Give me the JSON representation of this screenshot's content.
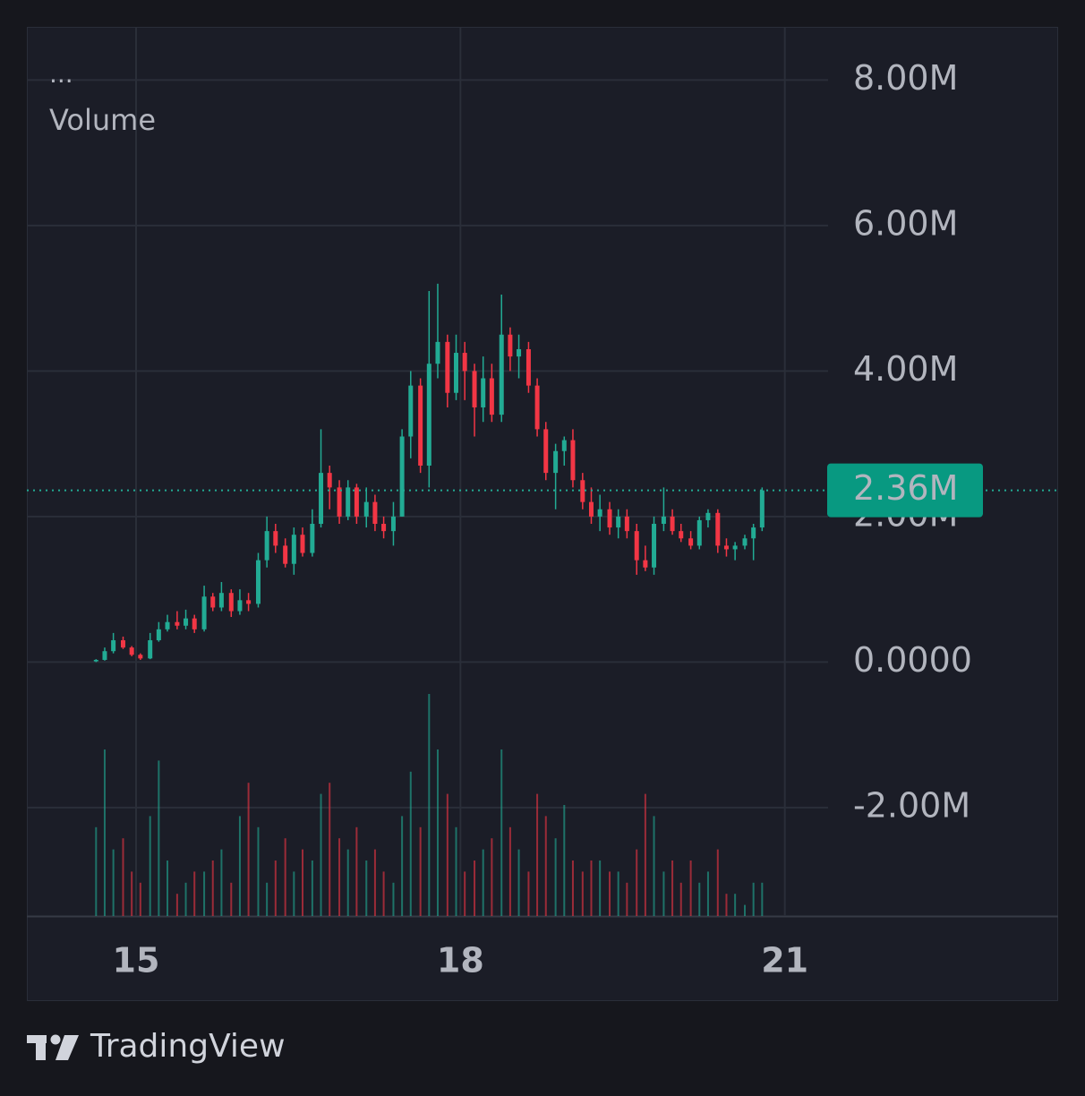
{
  "chart_data": {
    "type": "candlestick",
    "menu": "...",
    "legend_label": "Volume",
    "brand": "TradingView",
    "up_color": "#22ab94",
    "down_color": "#f23645",
    "x": [
      14.63,
      14.71,
      14.79,
      14.88,
      14.96,
      15.04,
      15.13,
      15.21,
      15.29,
      15.38,
      15.46,
      15.54,
      15.63,
      15.71,
      15.79,
      15.88,
      15.96,
      16.04,
      16.13,
      16.21,
      16.29,
      16.38,
      16.46,
      16.54,
      16.63,
      16.71,
      16.79,
      16.88,
      16.96,
      17.04,
      17.13,
      17.21,
      17.29,
      17.38,
      17.46,
      17.54,
      17.63,
      17.71,
      17.79,
      17.88,
      17.96,
      18.04,
      18.13,
      18.21,
      18.29,
      18.38,
      18.46,
      18.54,
      18.63,
      18.71,
      18.79,
      18.88,
      18.96,
      19.04,
      19.13,
      19.21,
      19.29,
      19.38,
      19.46,
      19.54,
      19.63,
      19.71,
      19.79,
      19.88,
      19.96,
      20.04,
      20.13,
      20.21,
      20.29,
      20.38,
      20.46,
      20.54,
      20.63,
      20.71,
      20.79
    ],
    "open": [
      0.01,
      0.03,
      0.15,
      0.3,
      0.2,
      0.1,
      0.05,
      0.3,
      0.45,
      0.55,
      0.5,
      0.6,
      0.45,
      0.9,
      0.75,
      0.95,
      0.7,
      0.85,
      0.8,
      1.4,
      1.8,
      1.6,
      1.35,
      1.75,
      1.5,
      1.9,
      2.6,
      2.4,
      2.0,
      2.4,
      2.0,
      2.2,
      1.9,
      1.8,
      2.0,
      3.1,
      3.8,
      2.7,
      4.1,
      4.4,
      3.7,
      4.25,
      4.0,
      3.5,
      3.9,
      3.4,
      4.5,
      4.2,
      4.3,
      3.8,
      3.2,
      2.6,
      2.9,
      3.05,
      2.5,
      2.2,
      2.0,
      2.1,
      1.85,
      2.0,
      1.8,
      1.4,
      1.3,
      1.9,
      2.0,
      1.8,
      1.7,
      1.6,
      1.95,
      2.05,
      1.6,
      1.55,
      1.6,
      1.7,
      1.85
    ],
    "high": [
      0.04,
      0.2,
      0.4,
      0.35,
      0.22,
      0.12,
      0.4,
      0.55,
      0.65,
      0.7,
      0.72,
      0.65,
      1.05,
      0.95,
      1.1,
      1.0,
      1.0,
      0.95,
      1.5,
      2.0,
      1.9,
      1.7,
      1.85,
      1.85,
      2.1,
      3.2,
      2.7,
      2.5,
      2.5,
      2.45,
      2.4,
      2.3,
      2.0,
      2.2,
      3.2,
      4.0,
      3.9,
      5.1,
      5.2,
      4.5,
      4.5,
      4.4,
      4.1,
      4.2,
      4.1,
      5.05,
      4.6,
      4.5,
      4.4,
      3.9,
      3.3,
      3.0,
      3.1,
      3.2,
      2.6,
      2.4,
      2.3,
      2.2,
      2.1,
      2.1,
      1.9,
      1.6,
      2.0,
      2.4,
      2.1,
      1.9,
      1.8,
      2.0,
      2.1,
      2.1,
      1.7,
      1.65,
      1.75,
      1.9,
      2.4
    ],
    "low": [
      0.0,
      0.02,
      0.12,
      0.18,
      0.08,
      0.03,
      0.04,
      0.28,
      0.42,
      0.45,
      0.45,
      0.4,
      0.42,
      0.7,
      0.7,
      0.62,
      0.65,
      0.7,
      0.75,
      1.3,
      1.5,
      1.3,
      1.2,
      1.45,
      1.45,
      1.85,
      2.1,
      1.9,
      1.95,
      1.9,
      1.85,
      1.8,
      1.7,
      1.6,
      2.0,
      2.8,
      2.6,
      2.4,
      3.9,
      3.5,
      3.6,
      3.6,
      3.1,
      3.3,
      3.3,
      3.3,
      4.0,
      3.9,
      3.7,
      3.1,
      2.5,
      2.1,
      2.7,
      2.4,
      2.1,
      1.9,
      1.8,
      1.75,
      1.7,
      1.7,
      1.2,
      1.25,
      1.2,
      1.8,
      1.75,
      1.65,
      1.55,
      1.55,
      1.85,
      1.5,
      1.45,
      1.4,
      1.55,
      1.4,
      1.8
    ],
    "close": [
      0.03,
      0.15,
      0.3,
      0.2,
      0.1,
      0.05,
      0.3,
      0.45,
      0.55,
      0.5,
      0.6,
      0.45,
      0.9,
      0.75,
      0.95,
      0.7,
      0.85,
      0.8,
      1.4,
      1.8,
      1.6,
      1.35,
      1.75,
      1.5,
      1.9,
      2.6,
      2.4,
      2.0,
      2.4,
      2.0,
      2.2,
      1.9,
      1.8,
      2.0,
      3.1,
      3.8,
      2.7,
      4.1,
      4.4,
      3.7,
      4.25,
      4.0,
      3.5,
      3.9,
      3.4,
      4.5,
      4.2,
      4.3,
      3.8,
      3.2,
      2.6,
      2.9,
      3.05,
      2.5,
      2.2,
      2.0,
      2.1,
      1.85,
      2.0,
      1.8,
      1.4,
      1.3,
      1.9,
      2.0,
      1.8,
      1.7,
      1.6,
      1.95,
      2.05,
      1.6,
      1.55,
      1.6,
      1.7,
      1.85,
      2.36
    ],
    "volume": [
      40,
      75,
      30,
      35,
      20,
      15,
      45,
      70,
      25,
      10,
      15,
      20,
      20,
      25,
      30,
      15,
      45,
      60,
      40,
      15,
      25,
      35,
      20,
      30,
      25,
      55,
      60,
      35,
      30,
      40,
      25,
      30,
      20,
      15,
      45,
      65,
      40,
      100,
      75,
      55,
      40,
      20,
      25,
      30,
      35,
      75,
      40,
      30,
      20,
      55,
      45,
      35,
      50,
      25,
      20,
      25,
      25,
      20,
      20,
      15,
      30,
      55,
      45,
      20,
      25,
      15,
      25,
      15,
      20,
      30,
      10,
      10,
      5,
      15,
      15
    ],
    "last_price": {
      "value": 2.36,
      "label": "2.36M"
    },
    "xlim": [
      13.99,
      21.4
    ],
    "xticks": [
      15,
      18,
      21
    ],
    "ylim": [
      -3.49,
      8.73
    ],
    "yticks": [
      {
        "value": 8,
        "label": "8.00M"
      },
      {
        "value": 6,
        "label": "6.00M"
      },
      {
        "value": 4,
        "label": "4.00M"
      },
      {
        "value": 2,
        "label": "2.00M"
      },
      {
        "value": 0,
        "label": "0.0000"
      },
      {
        "value": -2,
        "label": "-2.00M"
      }
    ],
    "grid": true
  }
}
